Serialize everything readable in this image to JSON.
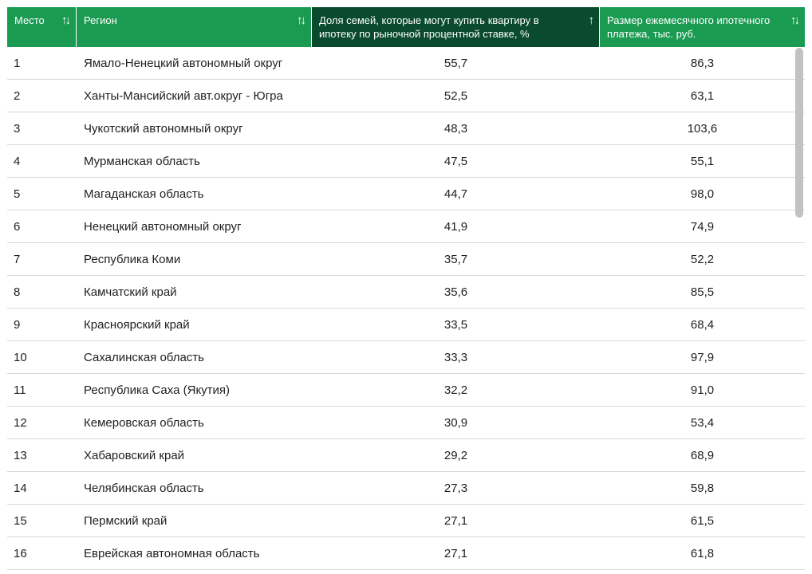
{
  "table": {
    "columns": [
      {
        "label": "Место",
        "sort_icon": "sort-both-icon",
        "glyph": "↑↓",
        "active": false
      },
      {
        "label": "Регион",
        "sort_icon": "sort-both-icon",
        "glyph": "↑↓",
        "active": false
      },
      {
        "label": "Доля семей, которые могут купить квартиру в ипотеку по рыночной процентной ставке, %",
        "sort_icon": "sort-ascending-icon",
        "glyph": "↑",
        "active": true
      },
      {
        "label": "Размер ежемесячного ипотечного платежа, тыс. руб.",
        "sort_icon": "sort-both-icon",
        "glyph": "↑↓",
        "active": false
      }
    ],
    "rows": [
      [
        "1",
        "Ямало-Ненецкий автономный округ",
        "55,7",
        "86,3"
      ],
      [
        "2",
        "Ханты-Мансийский авт.округ - Югра",
        "52,5",
        "63,1"
      ],
      [
        "3",
        "Чукотский автономный округ",
        "48,3",
        "103,6"
      ],
      [
        "4",
        "Мурманская область",
        "47,5",
        "55,1"
      ],
      [
        "5",
        "Магаданская область",
        "44,7",
        "98,0"
      ],
      [
        "6",
        "Ненецкий автономный округ",
        "41,9",
        "74,9"
      ],
      [
        "7",
        "Республика Коми",
        "35,7",
        "52,2"
      ],
      [
        "8",
        "Камчатский край",
        "35,6",
        "85,5"
      ],
      [
        "9",
        "Красноярский край",
        "33,5",
        "68,4"
      ],
      [
        "10",
        "Сахалинская область",
        "33,3",
        "97,9"
      ],
      [
        "11",
        "Республика Саха (Якутия)",
        "32,2",
        "91,0"
      ],
      [
        "12",
        "Кемеровская область",
        "30,9",
        "53,4"
      ],
      [
        "13",
        "Хабаровский край",
        "29,2",
        "68,9"
      ],
      [
        "14",
        "Челябинская область",
        "27,3",
        "59,8"
      ],
      [
        "15",
        "Пермский край",
        "27,1",
        "61,5"
      ],
      [
        "16",
        "Еврейская автономная область",
        "27,1",
        "61,8"
      ]
    ]
  },
  "colors": {
    "header_bg": "#1b9b52",
    "header_active_bg": "#0a4a2e",
    "row_divider": "#d9d9d9",
    "scrollbar_thumb": "#c2c2c2"
  }
}
